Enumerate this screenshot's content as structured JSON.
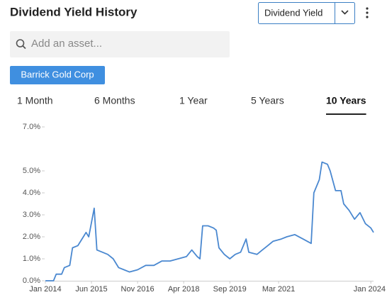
{
  "header": {
    "title": "Dividend Yield History",
    "metric_select": "Dividend Yield"
  },
  "search": {
    "placeholder": "Add an asset..."
  },
  "asset_chip": "Barrick Gold Corp",
  "tabs": {
    "items": [
      "1 Month",
      "6 Months",
      "1 Year",
      "5 Years",
      "10 Years"
    ],
    "active": 4
  },
  "chart_data": {
    "type": "line",
    "color": "#4a88d0",
    "grid": false,
    "x": [
      "2014-01",
      "2014-04",
      "2014-05",
      "2014-07",
      "2014-08",
      "2014-10",
      "2014-11",
      "2015-01",
      "2015-03",
      "2015-04",
      "2015-05",
      "2015-07",
      "2015-08",
      "2015-10",
      "2015-12",
      "2016-02",
      "2016-04",
      "2016-06",
      "2016-08",
      "2016-11",
      "2017-02",
      "2017-05",
      "2017-08",
      "2017-11",
      "2018-02",
      "2018-05",
      "2018-07",
      "2018-09",
      "2018-10",
      "2018-11",
      "2019-01",
      "2019-03",
      "2019-04",
      "2019-05",
      "2019-07",
      "2019-09",
      "2019-11",
      "2020-01",
      "2020-03",
      "2020-04",
      "2020-07",
      "2020-09",
      "2020-11",
      "2021-01",
      "2021-04",
      "2021-06",
      "2021-09",
      "2021-12",
      "2022-03",
      "2022-04",
      "2022-06",
      "2022-07",
      "2022-09",
      "2022-10",
      "2022-12",
      "2023-02",
      "2023-03",
      "2023-05",
      "2023-07",
      "2023-09",
      "2023-11",
      "2024-01",
      "2024-02"
    ],
    "values": [
      0,
      0,
      0.3,
      0.3,
      0.6,
      0.7,
      1.5,
      1.6,
      2.0,
      2.2,
      2.0,
      3.3,
      1.4,
      1.3,
      1.2,
      1.0,
      0.6,
      0.5,
      0.4,
      0.5,
      0.7,
      0.7,
      0.9,
      0.9,
      1.0,
      1.1,
      1.4,
      1.1,
      1.0,
      2.5,
      2.5,
      2.4,
      2.3,
      1.5,
      1.2,
      1.0,
      1.2,
      1.3,
      1.9,
      1.3,
      1.2,
      1.4,
      1.6,
      1.8,
      1.9,
      2.0,
      2.1,
      1.9,
      1.7,
      4.0,
      4.6,
      5.4,
      5.3,
      5.0,
      4.1,
      4.1,
      3.5,
      3.2,
      2.8,
      3.1,
      2.6,
      2.4,
      2.2
    ],
    "xlim": [
      "2014-01",
      "2024-02"
    ],
    "xticks": [
      {
        "value": "2014-01",
        "label": "Jan 2014"
      },
      {
        "value": "2015-06",
        "label": "Jun 2015"
      },
      {
        "value": "2016-11",
        "label": "Nov 2016"
      },
      {
        "value": "2018-04",
        "label": "Apr 2018"
      },
      {
        "value": "2019-09",
        "label": "Sep 2019"
      },
      {
        "value": "2021-03",
        "label": "Mar 2021"
      },
      {
        "value": "2024-01",
        "label": "Jan 2024"
      }
    ],
    "ylim": [
      0,
      7
    ],
    "yticks": [
      {
        "value": 0,
        "label": "0.0%"
      },
      {
        "value": 1,
        "label": "1.0%"
      },
      {
        "value": 2,
        "label": "2.0%"
      },
      {
        "value": 3,
        "label": "3.0%"
      },
      {
        "value": 4,
        "label": "4.0%"
      },
      {
        "value": 5,
        "label": "5.0%"
      },
      {
        "value": 7,
        "label": "7.0%"
      }
    ]
  }
}
